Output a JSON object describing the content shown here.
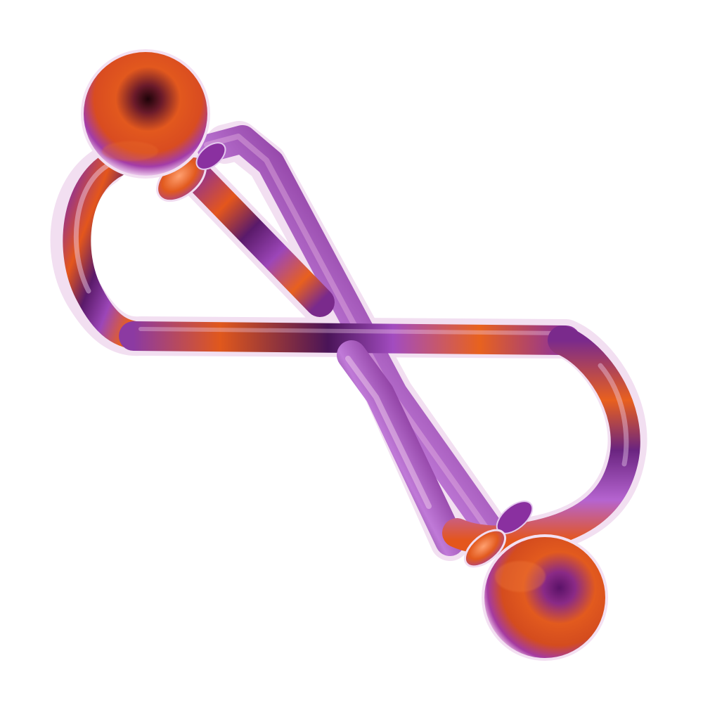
{
  "artwork": {
    "subject": "figure-eight-bent-wire-with-two-spheres",
    "colors": {
      "background": "#ffffff",
      "purple": "#7a2a8c",
      "purple_light": "#b56ad0",
      "purple_dark": "#3a0f45",
      "orange": "#e85a1e",
      "orange_light": "#ff8a3c",
      "highlight": "#f3d6f2"
    }
  }
}
